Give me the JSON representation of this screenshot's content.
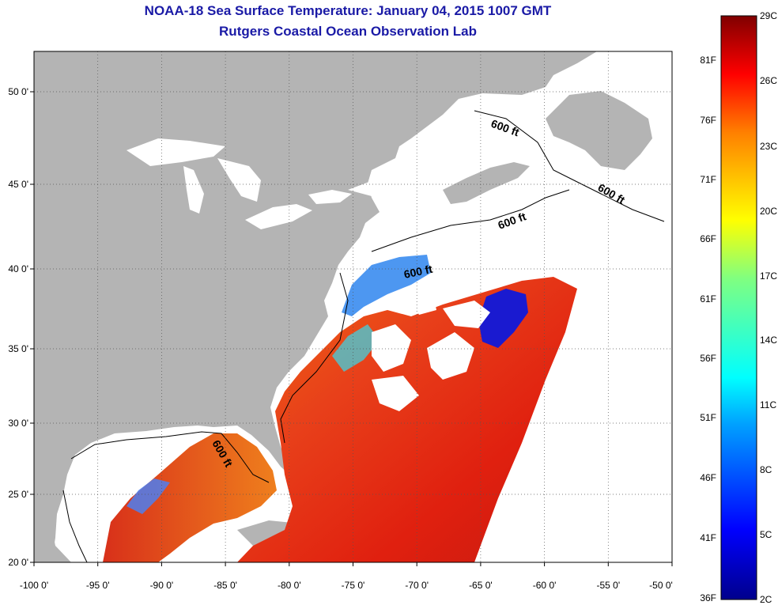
{
  "title": {
    "line1": "NOAA-18 Sea Surface Temperature:  January 04, 2015 1007 GMT",
    "line2": "Rutgers Coastal Ocean Observation Lab"
  },
  "axes": {
    "x_ticks": [
      "-100 0'",
      "-95 0'",
      "-90 0'",
      "-85 0'",
      "-80 0'",
      "-75 0'",
      "-70 0'",
      "-65 0'",
      "-60 0'",
      "-55 0'",
      "-50 0'"
    ],
    "y_ticks": [
      "20 0'",
      "25 0'",
      "30 0'",
      "35 0'",
      "40 0'",
      "45 0'",
      "50 0'"
    ],
    "x_range_deg": [
      -100,
      -50
    ],
    "y_range_deg": [
      20,
      52.5
    ]
  },
  "contour_labels": [
    "600 ft",
    "600 ft",
    "600 ft",
    "600 ft",
    "600 ft"
  ],
  "colorbar": {
    "celsius_labels": [
      "29C",
      "26C",
      "23C",
      "20C",
      "17C",
      "14C",
      "11C",
      "8C",
      "5C",
      "2C"
    ],
    "fahrenheit_labels": [
      "81F",
      "76F",
      "71F",
      "66F",
      "61F",
      "56F",
      "51F",
      "46F",
      "41F",
      "36F"
    ],
    "range_c": [
      2,
      29
    ]
  },
  "colors": {
    "land": "#b4b4b4",
    "cloud": "#ffffff",
    "title": "#1a1aa6"
  }
}
